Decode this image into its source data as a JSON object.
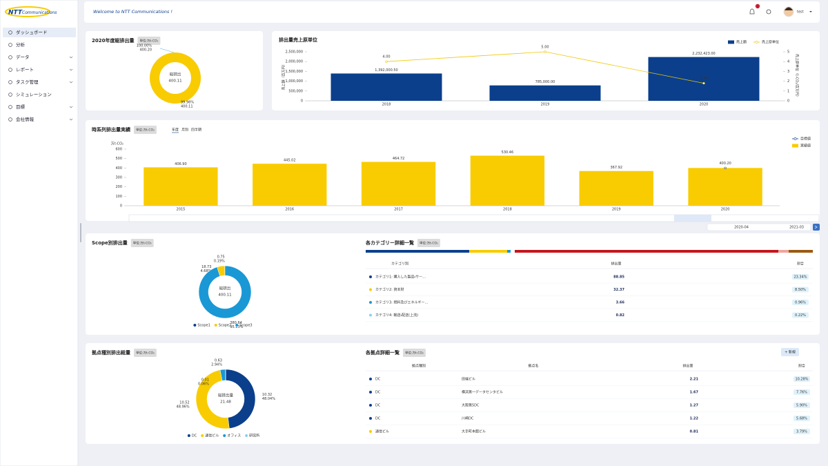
{
  "sidebar": {
    "logo_main": "NTT",
    "logo_sub": "Communications",
    "menu": [
      "ダッシュボード",
      "分析",
      "データ",
      "レポート",
      "タスク管理",
      "シミュレーション",
      "目標",
      "会社情報"
    ]
  },
  "header": {
    "welcome": "Welcome to NTT Communications !",
    "notifications": 1,
    "user": "test"
  },
  "chart_data": [
    {
      "type": "gauge",
      "title": "2020年度総排出量",
      "unit": "単位:万t-CO₂",
      "center_label": "総排出",
      "values": [
        400.11,
        400.2
      ],
      "value_labels": [
        "400.11",
        "400.20"
      ],
      "share_labels": [
        "99.98%",
        "100.00%"
      ],
      "colors": [
        "#f8cc00",
        "#1a98d5"
      ]
    },
    {
      "type": "combo",
      "title": "排出量売上原単位",
      "categories": [
        "2018",
        "2019",
        "2020"
      ],
      "ylabel": "売上額（百万円）",
      "y2label": "売上原単位（t-CO₂/百万円）",
      "series": [
        {
          "name": "売上額",
          "type": "bar",
          "color": "#0b3f8c",
          "values": [
            1392000.5,
            785000,
            2232423
          ],
          "value_labels": [
            "1,392,000.50",
            "785,000.00",
            "2,232,423.00"
          ]
        },
        {
          "name": "売上原単位",
          "type": "line",
          "axis": "y2",
          "color": "#f0c800",
          "values": [
            4,
            5,
            1.79
          ],
          "value_labels": [
            "4.00",
            "5.00",
            "1.79"
          ]
        }
      ],
      "ylim": [
        0,
        2500000
      ],
      "yticks": [
        0,
        {
          "value": 500000,
          "label": "500,000"
        },
        {
          "value": 1000000,
          "label": "1,000,000"
        },
        {
          "value": 1500000,
          "label": "1,500,000"
        },
        {
          "value": 2000000,
          "label": "2,000,000"
        },
        {
          "value": 2500000,
          "label": "2,500,000"
        }
      ],
      "y2lim": [
        0,
        5
      ],
      "y2ticks": [
        0,
        1,
        2,
        3,
        4,
        5
      ],
      "grid": false
    },
    {
      "type": "combo",
      "title": "時系列排出量実績",
      "unit": "単位:万t-CO₂",
      "yunit": "万t-CO₂",
      "categories": [
        "2015",
        "2016",
        "2017",
        "2018",
        "2019",
        "2020"
      ],
      "series": [
        {
          "name": "目標値",
          "type": "line",
          "color": "#0b3f8c",
          "values": [
            null,
            null,
            null,
            null,
            null,
            400.2
          ],
          "value_labels": [
            null,
            null,
            null,
            null,
            null,
            "400.20"
          ]
        },
        {
          "name": "実績値",
          "type": "bar",
          "color": "#f8cc00",
          "values": [
            406.9,
            445.02,
            464.72,
            530.46,
            367.92,
            400.2
          ],
          "value_labels": [
            "406.90",
            "445.02",
            "464.72",
            "530.46",
            "367.92",
            null
          ]
        }
      ],
      "ylim": [
        0,
        600
      ],
      "yticks": [
        0,
        100,
        200,
        300,
        400,
        500,
        600
      ],
      "grid": false
    },
    {
      "type": "donut",
      "title": "Scope別排出量",
      "unit": "単位:万t-CO₂",
      "center_label": "総排出",
      "center_value": 400.11,
      "clockwise": false,
      "categories": [
        "Scope1",
        "Scope2",
        "Scope3"
      ],
      "values": [
        0.75,
        18.73,
        380.64
      ],
      "share_labels": [
        "0.19%",
        "4.68%",
        "95.13%"
      ],
      "colors": [
        "#0b3f8c",
        "#f8cc00",
        "#1a98d5"
      ]
    },
    {
      "type": "donut",
      "title": "拠点種別排出総量",
      "unit": "単位:万t-CO₂",
      "center_label": "総排出量",
      "center_value": 21.48,
      "clockwise": true,
      "categories": [
        "DC",
        "通信ビル",
        "オフィス",
        "研究所"
      ],
      "values": [
        10.32,
        10.52,
        0.63,
        0.01
      ],
      "share_labels": [
        "48.04%",
        "48.96%",
        "2.94%",
        "0.06%"
      ],
      "colors": [
        "#0b3f8c",
        "#f8cc00",
        "#1a98d5",
        "#8fd0ec"
      ]
    }
  ],
  "timeline": {
    "tabs": [
      "年度",
      "月別",
      "四半期"
    ],
    "date_from": "2020-04",
    "date_to": "2021-03"
  },
  "category_table": {
    "title": "各カテゴリー詳細一覧",
    "unit": "単位:万t-CO₂",
    "headers": [
      "カテゴリ別",
      "排出量",
      "割合"
    ],
    "colors": [
      "#0b3f8c",
      "#f8cc00",
      "#1a98d5",
      "#8fd0ec"
    ],
    "rows": [
      [
        "カテゴリ1: 購入した製品・サー…",
        88.85,
        "23.34%"
      ],
      [
        "カテゴリ2: 資本財",
        32.37,
        "8.50%"
      ],
      [
        "カテゴリ3: 燃料及びエネルギー…",
        3.66,
        "0.96%"
      ],
      [
        "カテゴリ4: 輸送・配送(上流)",
        0.82,
        "0.22%"
      ]
    ]
  },
  "site_table": {
    "title": "各拠点詳細一覧",
    "unit": "単位:万t-CO₂",
    "button": "+ 新規",
    "headers": [
      "拠点種別",
      "拠点名",
      "排出量",
      "割合"
    ],
    "colors": [
      "#0b3f8c",
      "#0b3f8c",
      "#0b3f8c",
      "#0b3f8c",
      "#f8cc00"
    ],
    "rows": [
      [
        "DC",
        "田端ビル",
        2.21,
        "10.28%"
      ],
      [
        "DC",
        "横浜第一データセンタビル",
        1.67,
        "7.76%"
      ],
      [
        "DC",
        "大阪第5DC",
        1.27,
        "5.90%"
      ],
      [
        "DC",
        "川崎DC",
        1.22,
        "5.68%"
      ],
      [
        "通信ビル",
        "大手町本館ビル",
        0.81,
        "3.79%"
      ]
    ]
  }
}
